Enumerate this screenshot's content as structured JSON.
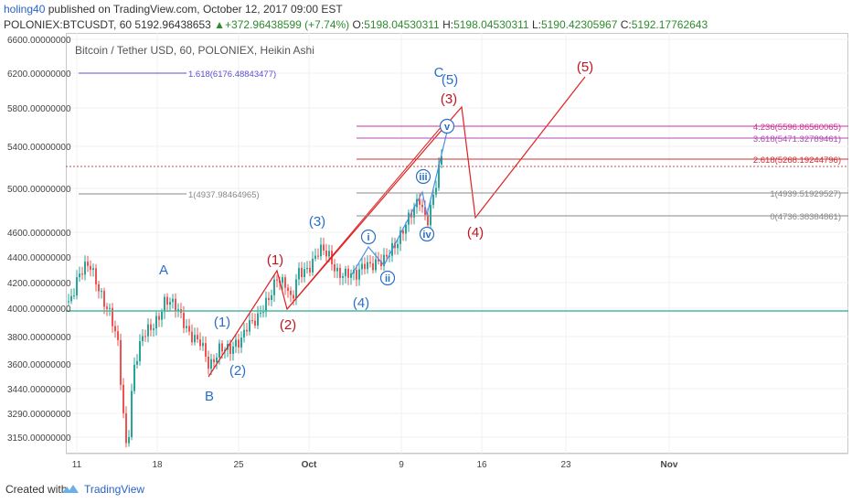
{
  "header": {
    "author": "holing40",
    "published_text": "published on TradingView.com, October 12, 2017 09:00 EST",
    "symbol": "POLONIEX:BTCUSDT, 60",
    "last_price": "5192.96438653",
    "change": "+372.96438599 (+7.74%)",
    "ohlc": {
      "o_label": "O:",
      "o": "5198.04530311",
      "h_label": "H:",
      "h": "5198.04530311",
      "l_label": "L:",
      "l": "5190.42305967",
      "c_label": "C:",
      "c": "5192.17762643"
    }
  },
  "chart": {
    "title": "Bitcoin / Tether USD, 60, POLONIEX, Heikin Ashi",
    "price_ticks": [
      "6600.00000000",
      "6200.00000000",
      "5800.00000000",
      "5400.00000000",
      "5000.00000000",
      "4600.00000000",
      "4400.00000000",
      "4200.00000000",
      "4000.00000000",
      "3800.00000000",
      "3600.00000000",
      "3440.00000000",
      "3290.00000000",
      "3150.00000000"
    ],
    "date_ticks": [
      "11",
      "18",
      "25",
      "Oct",
      "9",
      "16",
      "23",
      "Nov"
    ],
    "fib_levels": [
      {
        "text": "1.618(6176.48843477)",
        "color": "#5a4fcf"
      },
      {
        "text": "4.236(5596.86560065)",
        "color": "#cc3399"
      },
      {
        "text": "3.618(5471.32789461)",
        "color": "#b04bb0"
      },
      {
        "text": "2.618(5268.19244796)",
        "color": "#d03030"
      },
      {
        "text": "1(4937.98464965)",
        "color": "#888888"
      },
      {
        "text": "1(4939.51929527)",
        "color": "#888888"
      },
      {
        "text": "0(4736.38384861)",
        "color": "#888888"
      }
    ],
    "wave_labels": [
      {
        "text": "A",
        "color": "#2a6ec6"
      },
      {
        "text": "B",
        "color": "#2a6ec6"
      },
      {
        "text": "C",
        "color": "#2a6ec6"
      },
      {
        "text": "(1)",
        "color": "#2a6ec6"
      },
      {
        "text": "(2)",
        "color": "#2a6ec6"
      },
      {
        "text": "(3)",
        "color": "#2a6ec6"
      },
      {
        "text": "(4)",
        "color": "#2a6ec6"
      },
      {
        "text": "(5)",
        "color": "#2a6ec6"
      },
      {
        "text": "(1)",
        "color": "#c0141e"
      },
      {
        "text": "(2)",
        "color": "#c0141e"
      },
      {
        "text": "(3)",
        "color": "#c0141e"
      },
      {
        "text": "(4)",
        "color": "#c0141e"
      },
      {
        "text": "(5)",
        "color": "#c0141e"
      }
    ],
    "subwave_labels": [
      "i",
      "ii",
      "iii",
      "iv",
      "v"
    ],
    "colors": {
      "up_candle": "#26a69a",
      "down_candle": "#ef5350",
      "projection": "#e02020",
      "subwave_line": "#4a90e2",
      "support_line": "#4db6a0"
    }
  },
  "footer": {
    "created_with": "Created with",
    "brand": "TradingView"
  }
}
